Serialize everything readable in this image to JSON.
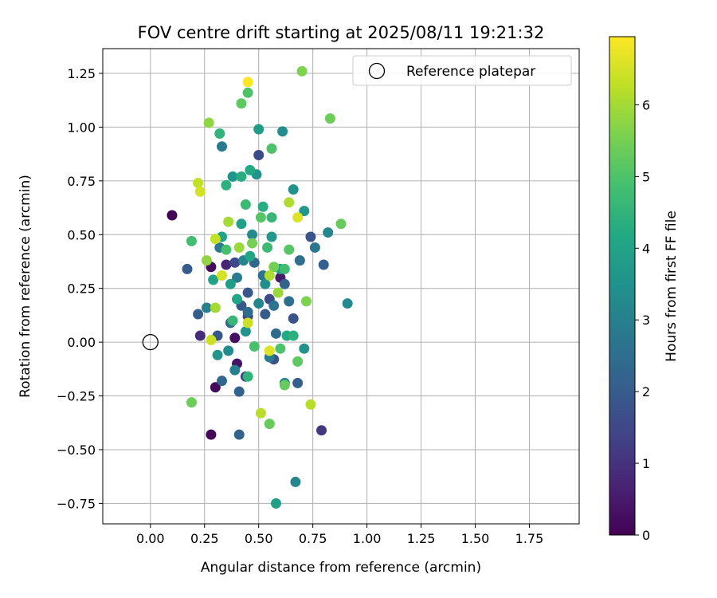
{
  "chart_data": {
    "type": "scatter",
    "title": "FOV centre drift starting at 2025/08/11 19:21:32",
    "xlabel": "Angular distance from reference (arcmin)",
    "ylabel": "Rotation from reference (arcmin)",
    "xlim": [
      -0.22,
      1.98
    ],
    "ylim": [
      -0.845,
      1.365
    ],
    "xticks": [
      0.0,
      0.25,
      0.5,
      0.75,
      1.0,
      1.25,
      1.5,
      1.75
    ],
    "xtick_labels": [
      "0.00",
      "0.25",
      "0.50",
      "0.75",
      "1.00",
      "1.25",
      "1.50",
      "1.75"
    ],
    "yticks": [
      -0.75,
      -0.5,
      -0.25,
      0.0,
      0.25,
      0.5,
      0.75,
      1.0,
      1.25
    ],
    "ytick_labels": [
      "−0.75",
      "−0.50",
      "−0.25",
      "0.00",
      "0.25",
      "0.50",
      "0.75",
      "1.00",
      "1.25"
    ],
    "grid": true,
    "legend": {
      "position": "top-right",
      "entries": [
        "Reference platepar"
      ]
    },
    "reference_point": {
      "x": 0.0,
      "y": 0.0,
      "label": "Reference platepar"
    },
    "colorbar": {
      "label": "Hours from first FF file",
      "min": 0,
      "max": 6.95,
      "ticks": [
        0,
        1,
        2,
        3,
        4,
        5,
        6
      ],
      "tick_labels": [
        "0",
        "1",
        "2",
        "3",
        "4",
        "5",
        "6"
      ],
      "colormap": "viridis"
    },
    "series": [
      {
        "points": [
          {
            "x": 0.1,
            "y": 0.59,
            "h": 0.05
          },
          {
            "x": 0.28,
            "y": -0.43,
            "h": 0.1
          },
          {
            "x": 0.3,
            "y": -0.21,
            "h": 0.15
          },
          {
            "x": 0.28,
            "y": 0.35,
            "h": 0.2
          },
          {
            "x": 0.39,
            "y": 0.02,
            "h": 0.3
          },
          {
            "x": 0.4,
            "y": -0.1,
            "h": 0.4
          },
          {
            "x": 0.6,
            "y": 0.3,
            "h": 0.5
          },
          {
            "x": 0.35,
            "y": 0.36,
            "h": 0.7
          },
          {
            "x": 0.23,
            "y": 0.03,
            "h": 0.9
          },
          {
            "x": 0.79,
            "y": -0.41,
            "h": 1.1
          },
          {
            "x": 0.44,
            "y": -0.16,
            "h": 1.3
          },
          {
            "x": 0.45,
            "y": 0.12,
            "h": 1.4
          },
          {
            "x": 0.39,
            "y": 0.37,
            "h": 1.5
          },
          {
            "x": 0.5,
            "y": 0.87,
            "h": 1.6
          },
          {
            "x": 0.55,
            "y": 0.2,
            "h": 1.6
          },
          {
            "x": 0.57,
            "y": -0.08,
            "h": 1.7
          },
          {
            "x": 0.66,
            "y": 0.11,
            "h": 1.8
          },
          {
            "x": 0.74,
            "y": 0.49,
            "h": 1.8
          },
          {
            "x": 0.42,
            "y": 0.17,
            "h": 1.9
          },
          {
            "x": 0.31,
            "y": 0.03,
            "h": 1.9
          },
          {
            "x": 0.45,
            "y": 0.23,
            "h": 1.9
          },
          {
            "x": 0.53,
            "y": 0.13,
            "h": 2.0
          },
          {
            "x": 0.17,
            "y": 0.34,
            "h": 2.0
          },
          {
            "x": 0.22,
            "y": 0.13,
            "h": 2.0
          },
          {
            "x": 0.68,
            "y": -0.19,
            "h": 2.1
          },
          {
            "x": 0.8,
            "y": 0.36,
            "h": 2.1
          },
          {
            "x": 0.62,
            "y": 0.27,
            "h": 2.2
          },
          {
            "x": 0.41,
            "y": -0.43,
            "h": 2.2
          },
          {
            "x": 0.41,
            "y": -0.23,
            "h": 2.2
          },
          {
            "x": 0.33,
            "y": -0.18,
            "h": 2.3
          },
          {
            "x": 0.48,
            "y": 0.37,
            "h": 2.3
          },
          {
            "x": 0.37,
            "y": 0.09,
            "h": 2.4
          },
          {
            "x": 0.45,
            "y": 0.14,
            "h": 2.4
          },
          {
            "x": 0.58,
            "y": 0.04,
            "h": 2.4
          },
          {
            "x": 0.69,
            "y": 0.38,
            "h": 2.5
          },
          {
            "x": 0.64,
            "y": 0.19,
            "h": 2.5
          },
          {
            "x": 0.52,
            "y": 0.31,
            "h": 2.6
          },
          {
            "x": 0.57,
            "y": 0.17,
            "h": 2.6
          },
          {
            "x": 0.76,
            "y": 0.44,
            "h": 2.7
          },
          {
            "x": 0.33,
            "y": 0.91,
            "h": 2.8
          },
          {
            "x": 0.32,
            "y": 0.44,
            "h": 2.8
          },
          {
            "x": 0.4,
            "y": 0.3,
            "h": 2.9
          },
          {
            "x": 0.55,
            "y": -0.07,
            "h": 2.9
          },
          {
            "x": 0.39,
            "y": -0.13,
            "h": 3.0
          },
          {
            "x": 0.26,
            "y": 0.16,
            "h": 3.0
          },
          {
            "x": 0.43,
            "y": 0.38,
            "h": 3.1
          },
          {
            "x": 0.5,
            "y": 0.18,
            "h": 3.1
          },
          {
            "x": 0.62,
            "y": -0.19,
            "h": 3.1
          },
          {
            "x": 0.67,
            "y": -0.65,
            "h": 3.2
          },
          {
            "x": 0.82,
            "y": 0.51,
            "h": 3.2
          },
          {
            "x": 0.91,
            "y": 0.18,
            "h": 3.3
          },
          {
            "x": 0.36,
            "y": -0.04,
            "h": 3.3
          },
          {
            "x": 0.47,
            "y": 0.5,
            "h": 3.3
          },
          {
            "x": 0.53,
            "y": 0.27,
            "h": 3.4
          },
          {
            "x": 0.61,
            "y": 0.98,
            "h": 3.4
          },
          {
            "x": 0.66,
            "y": 0.71,
            "h": 3.5
          },
          {
            "x": 0.71,
            "y": -0.03,
            "h": 3.5
          },
          {
            "x": 0.44,
            "y": 0.05,
            "h": 3.5
          },
          {
            "x": 0.31,
            "y": -0.06,
            "h": 3.6
          },
          {
            "x": 0.38,
            "y": 0.77,
            "h": 3.6
          },
          {
            "x": 0.49,
            "y": 0.78,
            "h": 3.6
          },
          {
            "x": 0.56,
            "y": 0.49,
            "h": 3.7
          },
          {
            "x": 0.71,
            "y": 0.61,
            "h": 3.7
          },
          {
            "x": 0.37,
            "y": 0.27,
            "h": 3.8
          },
          {
            "x": 0.5,
            "y": 0.99,
            "h": 3.8
          },
          {
            "x": 0.42,
            "y": 0.55,
            "h": 3.9
          },
          {
            "x": 0.58,
            "y": -0.75,
            "h": 3.9
          },
          {
            "x": 0.33,
            "y": 0.49,
            "h": 4.0
          },
          {
            "x": 0.6,
            "y": 0.34,
            "h": 4.0
          },
          {
            "x": 0.29,
            "y": 0.29,
            "h": 4.0
          },
          {
            "x": 0.46,
            "y": 0.4,
            "h": 4.1
          },
          {
            "x": 0.4,
            "y": 0.2,
            "h": 4.1
          },
          {
            "x": 0.63,
            "y": 0.03,
            "h": 4.2
          },
          {
            "x": 0.46,
            "y": 0.8,
            "h": 4.2
          },
          {
            "x": 0.42,
            "y": 0.77,
            "h": 4.3
          },
          {
            "x": 0.52,
            "y": 0.63,
            "h": 4.3
          },
          {
            "x": 0.35,
            "y": 0.73,
            "h": 4.4
          },
          {
            "x": 0.66,
            "y": 0.03,
            "h": 4.4
          },
          {
            "x": 0.45,
            "y": -0.16,
            "h": 4.5
          },
          {
            "x": 0.32,
            "y": 0.97,
            "h": 4.5
          },
          {
            "x": 0.56,
            "y": 0.58,
            "h": 4.6
          },
          {
            "x": 0.38,
            "y": 0.1,
            "h": 4.6
          },
          {
            "x": 0.54,
            "y": 0.44,
            "h": 4.7
          },
          {
            "x": 0.44,
            "y": 0.64,
            "h": 4.7
          },
          {
            "x": 0.62,
            "y": 0.34,
            "h": 4.8
          },
          {
            "x": 0.19,
            "y": 0.47,
            "h": 4.8
          },
          {
            "x": 0.35,
            "y": 0.43,
            "h": 4.9
          },
          {
            "x": 0.48,
            "y": -0.02,
            "h": 4.9
          },
          {
            "x": 0.6,
            "y": -0.03,
            "h": 5.0
          },
          {
            "x": 0.45,
            "y": 1.16,
            "h": 5.0
          },
          {
            "x": 0.56,
            "y": 0.9,
            "h": 5.0
          },
          {
            "x": 0.51,
            "y": 0.58,
            "h": 5.1
          },
          {
            "x": 0.64,
            "y": 0.43,
            "h": 5.1
          },
          {
            "x": 0.68,
            "y": -0.09,
            "h": 5.2
          },
          {
            "x": 0.42,
            "y": 1.11,
            "h": 5.2
          },
          {
            "x": 0.88,
            "y": 0.55,
            "h": 5.3
          },
          {
            "x": 0.55,
            "y": -0.38,
            "h": 5.3
          },
          {
            "x": 0.62,
            "y": -0.2,
            "h": 5.3
          },
          {
            "x": 0.19,
            "y": -0.28,
            "h": 5.4
          },
          {
            "x": 0.83,
            "y": 1.04,
            "h": 5.4
          },
          {
            "x": 0.47,
            "y": 0.46,
            "h": 5.5
          },
          {
            "x": 0.57,
            "y": 0.35,
            "h": 5.5
          },
          {
            "x": 0.72,
            "y": 0.19,
            "h": 5.6
          },
          {
            "x": 0.7,
            "y": 1.26,
            "h": 5.6
          },
          {
            "x": 0.27,
            "y": 1.02,
            "h": 5.8
          },
          {
            "x": 0.26,
            "y": 0.38,
            "h": 5.8
          },
          {
            "x": 0.41,
            "y": 0.44,
            "h": 5.9
          },
          {
            "x": 0.59,
            "y": 0.23,
            "h": 5.9
          },
          {
            "x": 0.3,
            "y": 0.16,
            "h": 6.0
          },
          {
            "x": 0.36,
            "y": 0.56,
            "h": 6.0
          },
          {
            "x": 0.55,
            "y": 0.31,
            "h": 6.1
          },
          {
            "x": 0.64,
            "y": 0.65,
            "h": 6.1
          },
          {
            "x": 0.74,
            "y": -0.29,
            "h": 6.2
          },
          {
            "x": 0.51,
            "y": -0.33,
            "h": 6.2
          },
          {
            "x": 0.22,
            "y": 0.74,
            "h": 6.3
          },
          {
            "x": 0.3,
            "y": 0.48,
            "h": 6.3
          },
          {
            "x": 0.28,
            "y": 0.01,
            "h": 6.4
          },
          {
            "x": 0.45,
            "y": 0.09,
            "h": 6.4
          },
          {
            "x": 0.33,
            "y": 0.31,
            "h": 6.5
          },
          {
            "x": 0.23,
            "y": 0.7,
            "h": 6.5
          },
          {
            "x": 0.55,
            "y": -0.04,
            "h": 6.6
          },
          {
            "x": 0.68,
            "y": 0.58,
            "h": 6.6
          },
          {
            "x": 0.45,
            "y": 1.21,
            "h": 6.95
          }
        ]
      }
    ]
  }
}
